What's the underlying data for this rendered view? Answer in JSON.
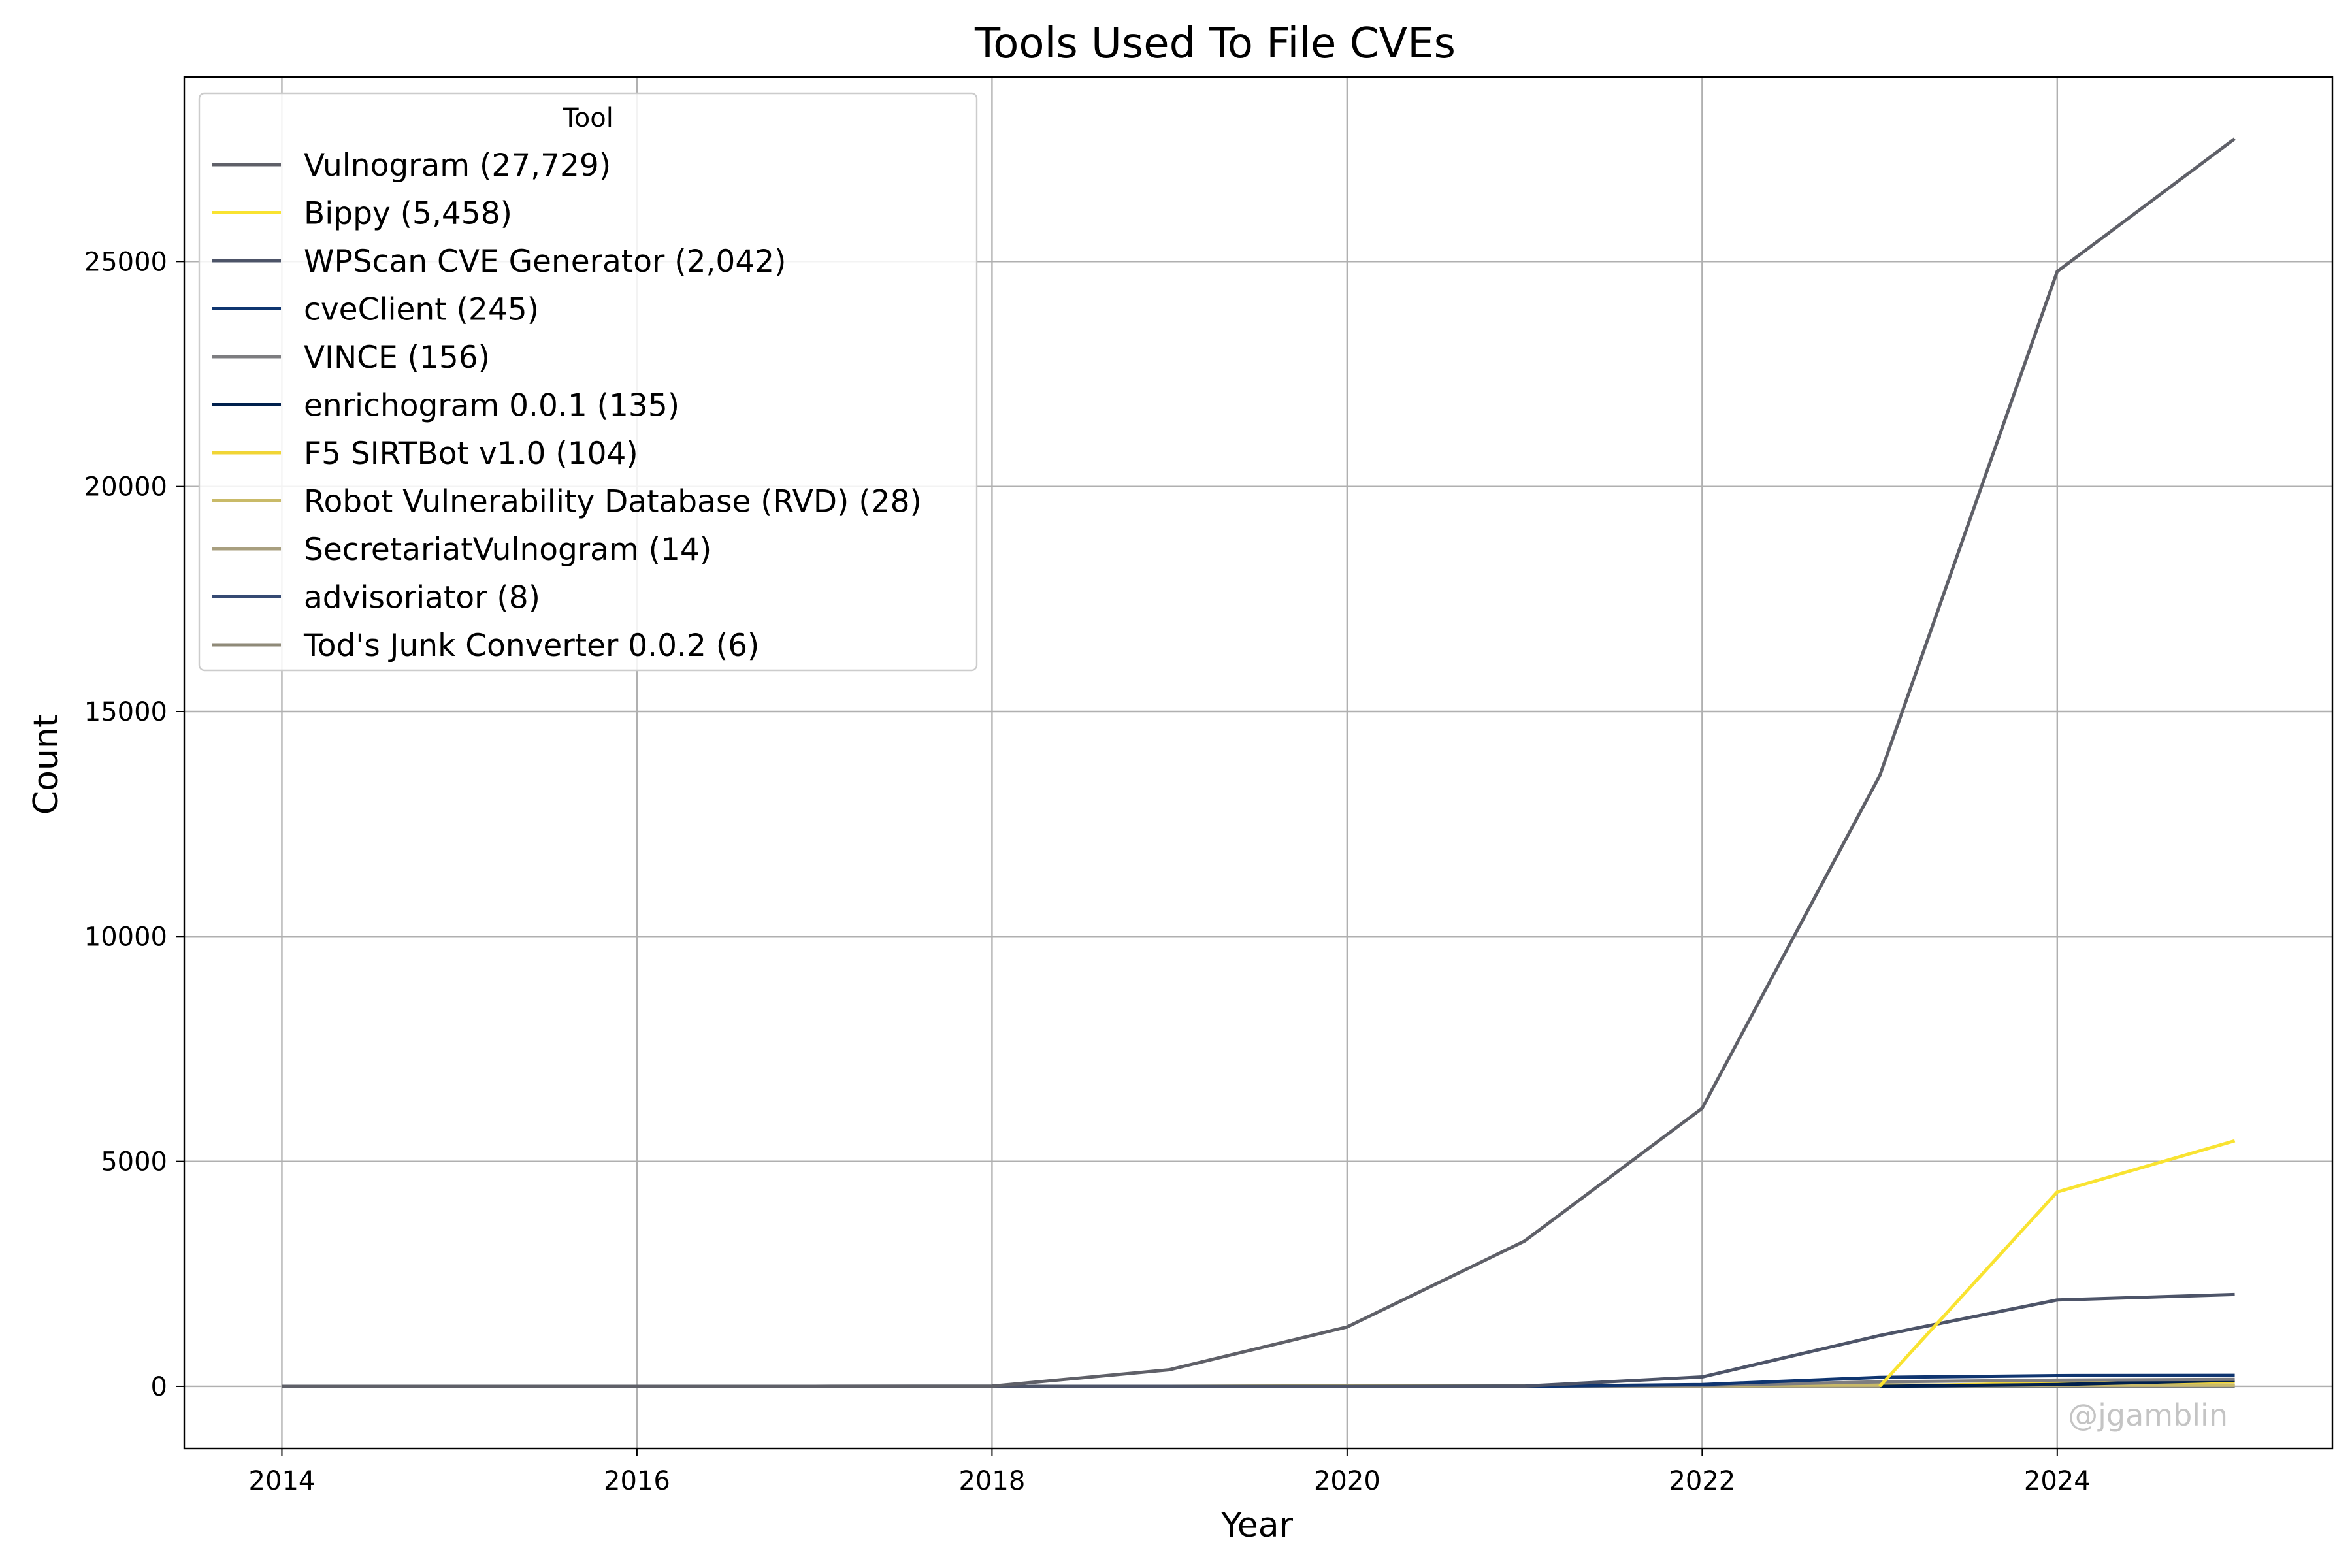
{
  "chart_data": {
    "type": "line",
    "title": "Tools Used To File CVEs",
    "xlabel": "Year",
    "ylabel": "Count",
    "xlim": [
      2013.45,
      2025.55
    ],
    "ylim": [
      -1380,
      29100
    ],
    "xticks": [
      2014,
      2016,
      2018,
      2020,
      2022,
      2024
    ],
    "yticks": [
      0,
      5000,
      10000,
      15000,
      20000,
      25000
    ],
    "grid": true,
    "legend_title": "Tool",
    "legend_position": "upper left",
    "watermark": "@jgamblin",
    "x": [
      2014,
      2015,
      2016,
      2017,
      2018,
      2019,
      2020,
      2021,
      2022,
      2023,
      2024,
      2025
    ],
    "series": [
      {
        "name": "Vulnogram (27,729)",
        "color": "#5f6068",
        "values": [
          0,
          0,
          0,
          0,
          5,
          370,
          1320,
          3230,
          6180,
          13570,
          24780,
          27729
        ]
      },
      {
        "name": "Bippy (5,458)",
        "color": "#f9e331",
        "values": [
          null,
          null,
          null,
          null,
          null,
          null,
          null,
          null,
          null,
          0,
          4320,
          5458
        ]
      },
      {
        "name": "WPScan CVE Generator (2,042)",
        "color": "#4d5468",
        "values": [
          0,
          0,
          0,
          0,
          0,
          0,
          0,
          5,
          210,
          1130,
          1920,
          2042
        ]
      },
      {
        "name": "cveClient (245)",
        "color": "#0f3570",
        "values": [
          0,
          0,
          0,
          0,
          0,
          0,
          0,
          0,
          40,
          200,
          240,
          245
        ]
      },
      {
        "name": "VINCE (156)",
        "color": "#7d7d80",
        "values": [
          0,
          0,
          0,
          0,
          0,
          0,
          0,
          0,
          20,
          100,
          140,
          156
        ]
      },
      {
        "name": "enrichogram 0.0.1 (135)",
        "color": "#00204d",
        "values": [
          null,
          null,
          null,
          null,
          null,
          null,
          null,
          null,
          null,
          0,
          40,
          135
        ]
      },
      {
        "name": "F5 SIRTBot v1.0 (104)",
        "color": "#f1d535",
        "values": [
          null,
          null,
          null,
          null,
          null,
          null,
          null,
          null,
          null,
          0,
          80,
          104
        ]
      },
      {
        "name": "Robot Vulnerability Database (RVD) (28)",
        "color": "#c9ba68",
        "values": [
          0,
          0,
          0,
          0,
          0,
          0,
          10,
          20,
          25,
          28,
          28,
          28
        ]
      },
      {
        "name": "SecretariatVulnogram (14)",
        "color": "#a89f7f",
        "values": [
          0,
          0,
          0,
          0,
          0,
          0,
          0,
          0,
          5,
          10,
          14,
          14
        ]
      },
      {
        "name": "advisoriator (8)",
        "color": "#354a73",
        "values": [
          0,
          0,
          0,
          0,
          0,
          0,
          0,
          0,
          2,
          5,
          8,
          8
        ]
      },
      {
        "name": "Tod's Junk Converter 0.0.2 (6)",
        "color": "#8f8a78",
        "values": [
          0,
          0,
          0,
          0,
          0,
          0,
          0,
          0,
          2,
          4,
          6,
          6
        ]
      }
    ]
  }
}
